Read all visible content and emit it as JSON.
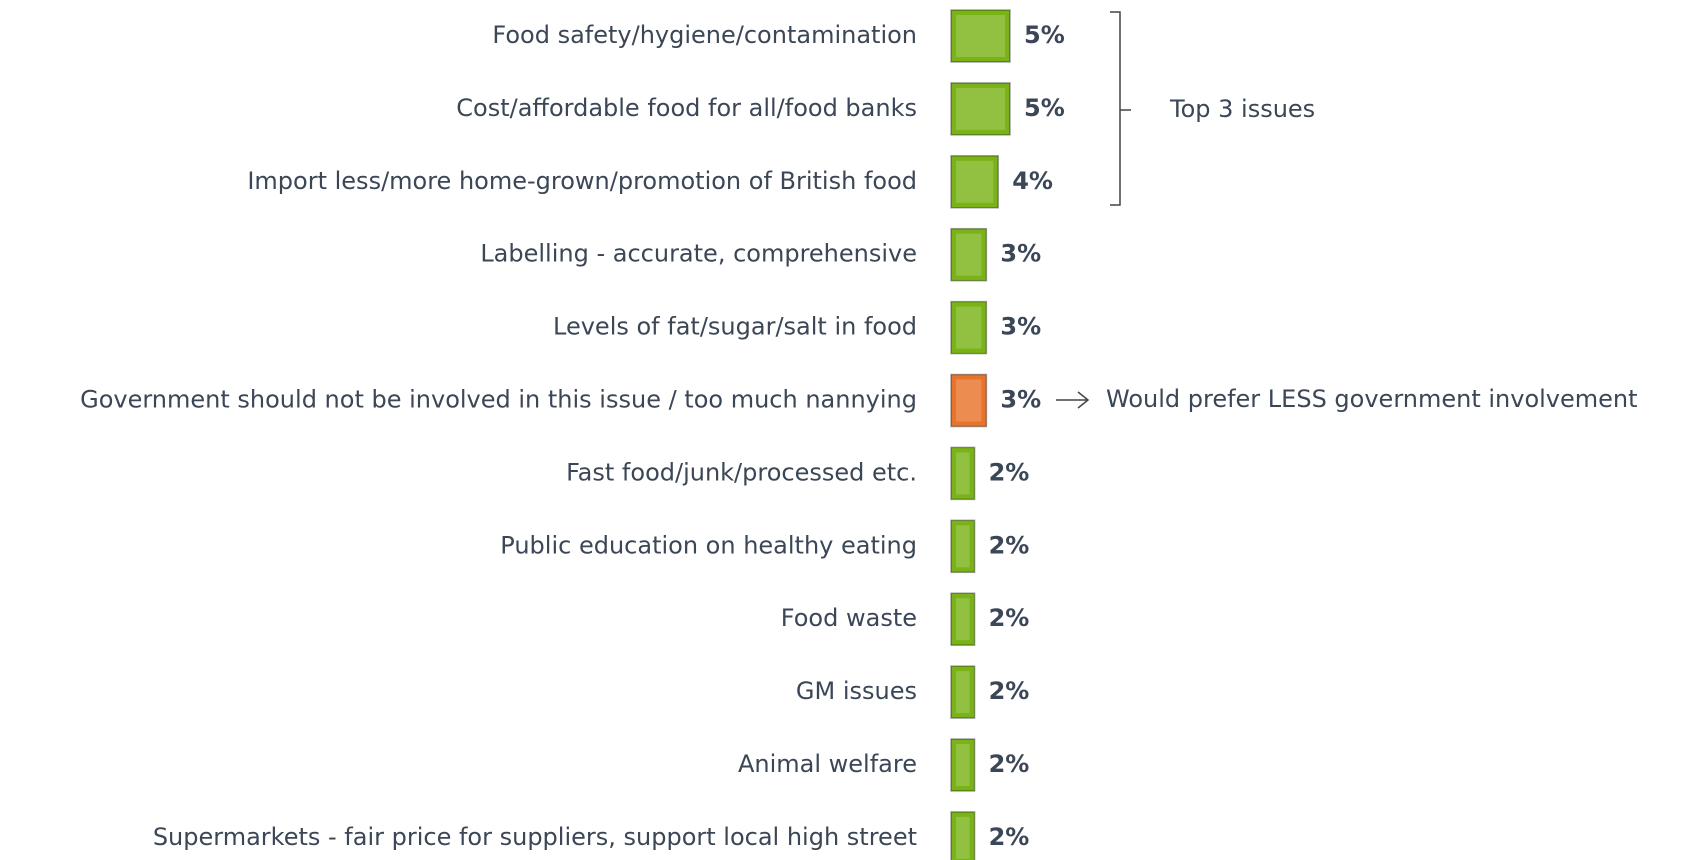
{
  "chart_data": {
    "type": "bar",
    "orientation": "horizontal",
    "categories": [
      "Food safety/hygiene/contamination",
      "Cost/affordable food for all/food banks",
      "Import less/more home-grown/promotion of British food",
      "Labelling - accurate, comprehensive",
      "Levels of fat/sugar/salt in food",
      "Government should not be involved in this issue / too much nannying",
      "Fast food/junk/processed etc.",
      "Public education on healthy eating",
      "Food waste",
      "GM issues",
      "Animal welfare",
      "Supermarkets - fair price for suppliers, support local high street"
    ],
    "values": [
      5,
      5,
      4,
      3,
      3,
      3,
      2,
      2,
      2,
      2,
      2,
      2
    ],
    "value_labels": [
      "5%",
      "5%",
      "4%",
      "3%",
      "3%",
      "3%",
      "2%",
      "2%",
      "2%",
      "2%",
      "2%",
      "2%"
    ],
    "colors": [
      "#7ab317",
      "#7ab317",
      "#7ab317",
      "#7ab317",
      "#7ab317",
      "#e8732a",
      "#7ab317",
      "#7ab317",
      "#7ab317",
      "#7ab317",
      "#7ab317",
      "#7ab317"
    ],
    "annotations": [
      "Top 3 issues",
      "Would prefer LESS government involvement"
    ]
  }
}
